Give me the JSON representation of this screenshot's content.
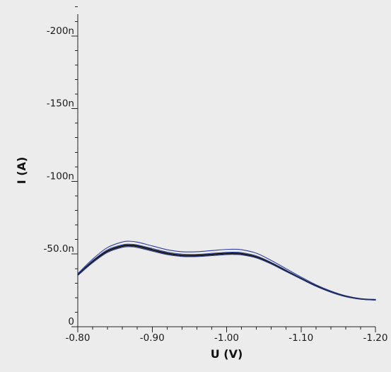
{
  "chart_data": {
    "type": "line",
    "xlabel": "U (V)",
    "ylabel": "I (A)",
    "xlim": [
      -0.8,
      -1.2
    ],
    "ylim": [
      0,
      -2.15e-07
    ],
    "x_ticks": [
      {
        "value": -0.8,
        "label": "-0.80"
      },
      {
        "value": -0.9,
        "label": "-0.90"
      },
      {
        "value": -1.0,
        "label": "-1.00"
      },
      {
        "value": -1.1,
        "label": "-1.10"
      },
      {
        "value": -1.2,
        "label": "-1.20"
      }
    ],
    "y_ticks": [
      {
        "value": 0,
        "label": "0"
      },
      {
        "value": -5e-08,
        "label": "-50.0n"
      },
      {
        "value": -1e-07,
        "label": "-100n"
      },
      {
        "value": -1.5e-07,
        "label": "-150n"
      },
      {
        "value": -2e-07,
        "label": "-200n"
      }
    ],
    "x_minor_step": 0.02,
    "y_minor_step": 1e-08,
    "grid": false,
    "series": [
      {
        "color": "#2e3f9e",
        "width": 1.1,
        "x": [
          -0.8,
          -0.82,
          -0.84,
          -0.86,
          -0.87,
          -0.88,
          -0.9,
          -0.92,
          -0.94,
          -0.96,
          -0.98,
          -1.0,
          -1.01,
          -1.02,
          -1.04,
          -1.06,
          -1.08,
          -1.1,
          -1.12,
          -1.14,
          -1.16,
          -1.18,
          -1.2
        ],
        "y": [
          -3.65e-08,
          -4.65e-08,
          -5.45e-08,
          -5.83e-08,
          -5.88e-08,
          -5.82e-08,
          -5.56e-08,
          -5.3e-08,
          -5.16e-08,
          -5.16e-08,
          -5.24e-08,
          -5.32e-08,
          -5.33e-08,
          -5.3e-08,
          -5.06e-08,
          -4.56e-08,
          -3.99e-08,
          -3.42e-08,
          -2.89e-08,
          -2.46e-08,
          -2.13e-08,
          -1.94e-08,
          -1.88e-08
        ]
      },
      {
        "color": "#3b4da8",
        "width": 1.0,
        "x": [
          -0.8,
          -0.82,
          -0.84,
          -0.86,
          -0.87,
          -0.88,
          -0.9,
          -0.92,
          -0.94,
          -0.96,
          -0.98,
          -1.0,
          -1.01,
          -1.02,
          -1.04,
          -1.06,
          -1.08,
          -1.1,
          -1.12,
          -1.14,
          -1.16,
          -1.18,
          -1.2
        ],
        "y": [
          -3.6e-08,
          -4.55e-08,
          -5.3e-08,
          -5.64e-08,
          -5.68e-08,
          -5.63e-08,
          -5.39e-08,
          -5.14e-08,
          -5e-08,
          -4.98e-08,
          -5.05e-08,
          -5.12e-08,
          -5.13e-08,
          -5.1e-08,
          -4.88e-08,
          -4.43e-08,
          -3.89e-08,
          -3.35e-08,
          -2.84e-08,
          -2.42e-08,
          -2.1e-08,
          -1.92e-08,
          -1.86e-08
        ]
      },
      {
        "color": "#111111",
        "width": 1.4,
        "x": [
          -0.8,
          -0.82,
          -0.84,
          -0.86,
          -0.87,
          -0.88,
          -0.9,
          -0.92,
          -0.94,
          -0.96,
          -0.98,
          -1.0,
          -1.01,
          -1.02,
          -1.04,
          -1.06,
          -1.08,
          -1.1,
          -1.12,
          -1.14,
          -1.16,
          -1.18,
          -1.2
        ],
        "y": [
          -3.58e-08,
          -4.5e-08,
          -5.23e-08,
          -5.58e-08,
          -5.62e-08,
          -5.57e-08,
          -5.32e-08,
          -5.07e-08,
          -4.93e-08,
          -4.92e-08,
          -4.99e-08,
          -5.06e-08,
          -5.07e-08,
          -5.04e-08,
          -4.82e-08,
          -4.38e-08,
          -3.85e-08,
          -3.32e-08,
          -2.82e-08,
          -2.4e-08,
          -2.09e-08,
          -1.91e-08,
          -1.85e-08
        ]
      },
      {
        "color": "#222222",
        "width": 1.3,
        "x": [
          -0.8,
          -0.82,
          -0.84,
          -0.86,
          -0.87,
          -0.88,
          -0.9,
          -0.92,
          -0.94,
          -0.96,
          -0.98,
          -1.0,
          -1.01,
          -1.02,
          -1.04,
          -1.06,
          -1.08,
          -1.1,
          -1.12,
          -1.14,
          -1.16,
          -1.18,
          -1.2
        ],
        "y": [
          -3.55e-08,
          -4.45e-08,
          -5.17e-08,
          -5.52e-08,
          -5.56e-08,
          -5.51e-08,
          -5.26e-08,
          -5.01e-08,
          -4.88e-08,
          -4.87e-08,
          -4.94e-08,
          -5.01e-08,
          -5.02e-08,
          -4.99e-08,
          -4.78e-08,
          -4.35e-08,
          -3.82e-08,
          -3.3e-08,
          -2.8e-08,
          -2.39e-08,
          -2.08e-08,
          -1.9e-08,
          -1.84e-08
        ]
      },
      {
        "color": "#2a3a94",
        "width": 1.0,
        "x": [
          -0.8,
          -0.82,
          -0.84,
          -0.86,
          -0.87,
          -0.88,
          -0.9,
          -0.92,
          -0.94,
          -0.96,
          -0.98,
          -1.0,
          -1.01,
          -1.02,
          -1.04,
          -1.06,
          -1.08,
          -1.1,
          -1.12,
          -1.14,
          -1.16,
          -1.18,
          -1.2
        ],
        "y": [
          -3.52e-08,
          -4.4e-08,
          -5.11e-08,
          -5.46e-08,
          -5.5e-08,
          -5.45e-08,
          -5.2e-08,
          -4.96e-08,
          -4.83e-08,
          -4.82e-08,
          -4.89e-08,
          -4.96e-08,
          -4.97e-08,
          -4.94e-08,
          -4.73e-08,
          -4.31e-08,
          -3.79e-08,
          -3.28e-08,
          -2.78e-08,
          -2.37e-08,
          -2.06e-08,
          -1.89e-08,
          -1.83e-08
        ]
      }
    ]
  }
}
